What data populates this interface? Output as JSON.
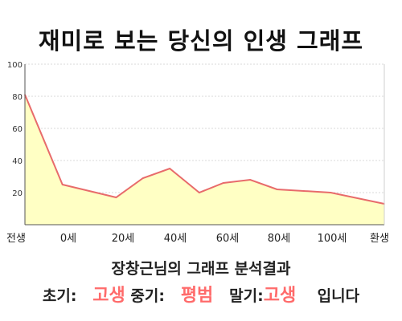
{
  "chart_data": {
    "type": "area",
    "title": "재미로 보는 당신의 인생 그래프",
    "ylim": [
      0,
      100
    ],
    "yticks": [
      20,
      40,
      60,
      80,
      100
    ],
    "x_tick_labels": [
      "전생",
      "0세",
      "20세",
      "40세",
      "60세",
      "80세",
      "100세",
      "환생"
    ],
    "points": [
      {
        "x": -14,
        "y": 81
      },
      {
        "x": 0,
        "y": 25
      },
      {
        "x": 20,
        "y": 17
      },
      {
        "x": 30,
        "y": 29
      },
      {
        "x": 40,
        "y": 35
      },
      {
        "x": 51,
        "y": 20
      },
      {
        "x": 60,
        "y": 26
      },
      {
        "x": 70,
        "y": 28
      },
      {
        "x": 80,
        "y": 22
      },
      {
        "x": 100,
        "y": 20
      },
      {
        "x": 120,
        "y": 13
      }
    ],
    "line_color": "#e86b6b",
    "fill_color": "#ffffc4",
    "grid": true
  },
  "result": {
    "subtitle": "장창근님의 그래프 분석결과",
    "early_label": "초기:",
    "early_value": "고생",
    "mid_label": "중기:",
    "mid_value": "평범",
    "late_label": "말기:",
    "late_value": "고생",
    "ending": "입니다"
  }
}
